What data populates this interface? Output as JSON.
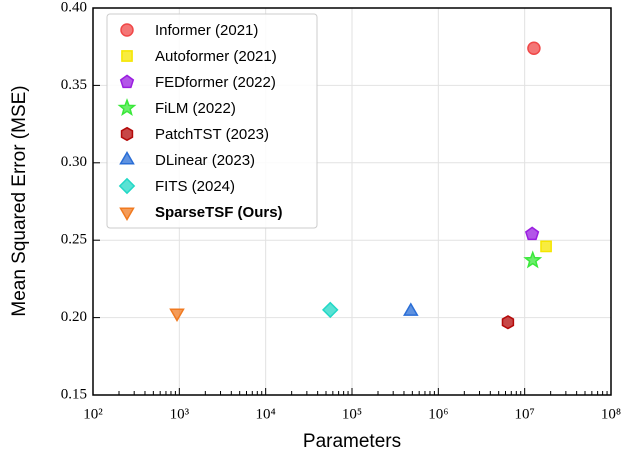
{
  "chart_data": {
    "type": "scatter",
    "xlabel": "Parameters",
    "ylabel": "Mean Squared Error (MSE)",
    "xscale": "log",
    "grid": true,
    "legend": "upper left",
    "xlim": [
      100,
      100000000
    ],
    "xticks": [
      {
        "value": 100,
        "label": "10²"
      },
      {
        "value": 1000,
        "label": "10³"
      },
      {
        "value": 10000,
        "label": "10⁴"
      },
      {
        "value": 100000,
        "label": "10⁵"
      },
      {
        "value": 1000000,
        "label": "10⁶"
      },
      {
        "value": 10000000,
        "label": "10⁷"
      },
      {
        "value": 100000000,
        "label": "10⁸"
      }
    ],
    "ylim": [
      0.15,
      0.4
    ],
    "yticks": [
      0.15,
      {
        "value": 0.2,
        "label": "0.20"
      },
      0.25,
      {
        "value": 0.3,
        "label": "0.30"
      },
      0.35,
      {
        "value": 0.4,
        "label": "0.40"
      }
    ],
    "series": [
      {
        "name": "Informer (2021)",
        "color": "#f04848",
        "marker": "circle",
        "x": [
          12800000
        ],
        "values": [
          0.374
        ]
      },
      {
        "name": "Autoformer (2021)",
        "color": "#f5e600",
        "marker": "square",
        "x": [
          17700000
        ],
        "values": [
          0.246
        ]
      },
      {
        "name": "FEDformer (2022)",
        "color": "#9a1ee0",
        "marker": "pentagon",
        "x": [
          12200000
        ],
        "values": [
          0.254
        ]
      },
      {
        "name": "FiLM (2022)",
        "color": "#3ae83a",
        "marker": "star",
        "x": [
          12400000
        ],
        "values": [
          0.237
        ]
      },
      {
        "name": "PatchTST (2023)",
        "color": "#b40a0a",
        "marker": "hexagon",
        "x": [
          6400000
        ],
        "values": [
          0.197
        ]
      },
      {
        "name": "DLinear (2023)",
        "color": "#2a6ed6",
        "marker": "triangle",
        "x": [
          480000
        ],
        "values": [
          0.204
        ]
      },
      {
        "name": "FITS (2024)",
        "color": "#22d8c6",
        "marker": "diamond",
        "x": [
          56000
        ],
        "values": [
          0.205
        ]
      },
      {
        "name": "SparseTSF (Ours)",
        "color": "#f07a20",
        "marker": "triangle-down",
        "x": [
          940
        ],
        "values": [
          0.203
        ]
      }
    ]
  }
}
